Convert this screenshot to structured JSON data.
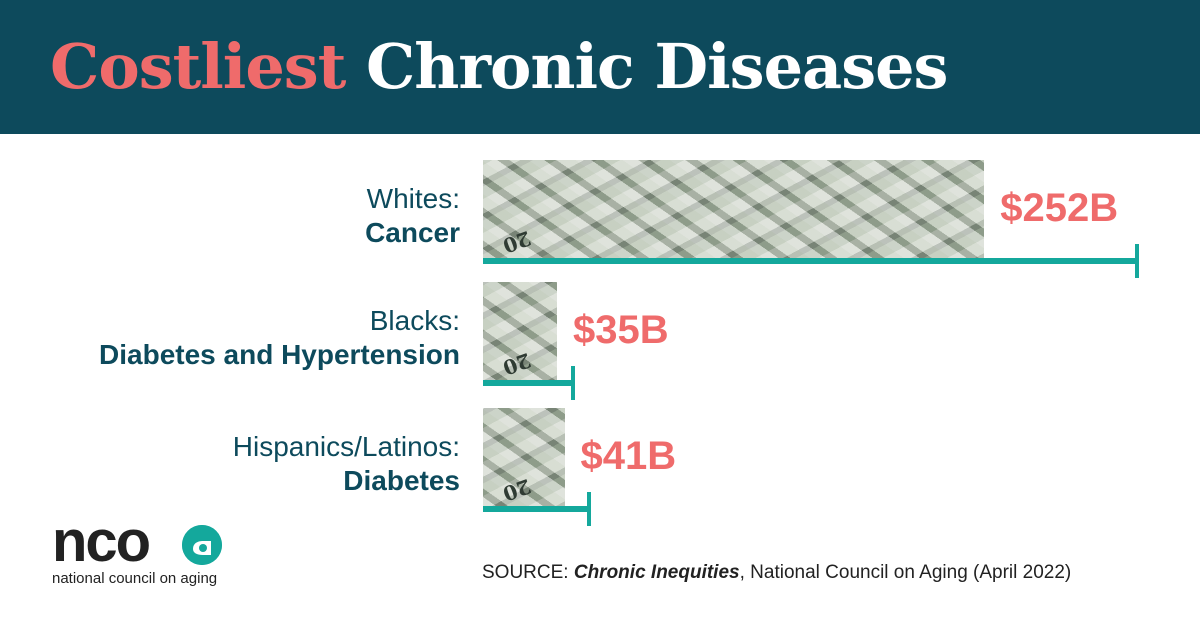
{
  "header": {
    "title_accent": "Costliest",
    "title_rest": "Chronic Diseases"
  },
  "chart_data": {
    "type": "bar",
    "orientation": "horizontal",
    "unit": "$ billions",
    "rows": [
      {
        "group": "Whites:",
        "disease": "Cancer",
        "value": 252,
        "label": "$252B",
        "icon_tag": "20"
      },
      {
        "group": "Blacks:",
        "disease": "Diabetes and Hypertension",
        "value": 35,
        "label": "$35B",
        "icon_tag": "20"
      },
      {
        "group": "Hispanics/Latinos:",
        "disease": "Diabetes",
        "value": 41,
        "label": "$41B",
        "icon_tag": "20"
      }
    ],
    "colors": {
      "bar_axis": "#14a89c",
      "value": "#ef6b6b",
      "label": "#0d4a5c"
    }
  },
  "logo": {
    "mark_text": "nco",
    "tagline": "national council on aging"
  },
  "source": {
    "prefix": "SOURCE: ",
    "publication": "Chronic Inequities",
    "suffix": ", National Council on Aging (April 2022)"
  },
  "colors": {
    "header_bg": "#0d4a5c",
    "accent": "#ef6b6b",
    "teal": "#14a89c"
  }
}
